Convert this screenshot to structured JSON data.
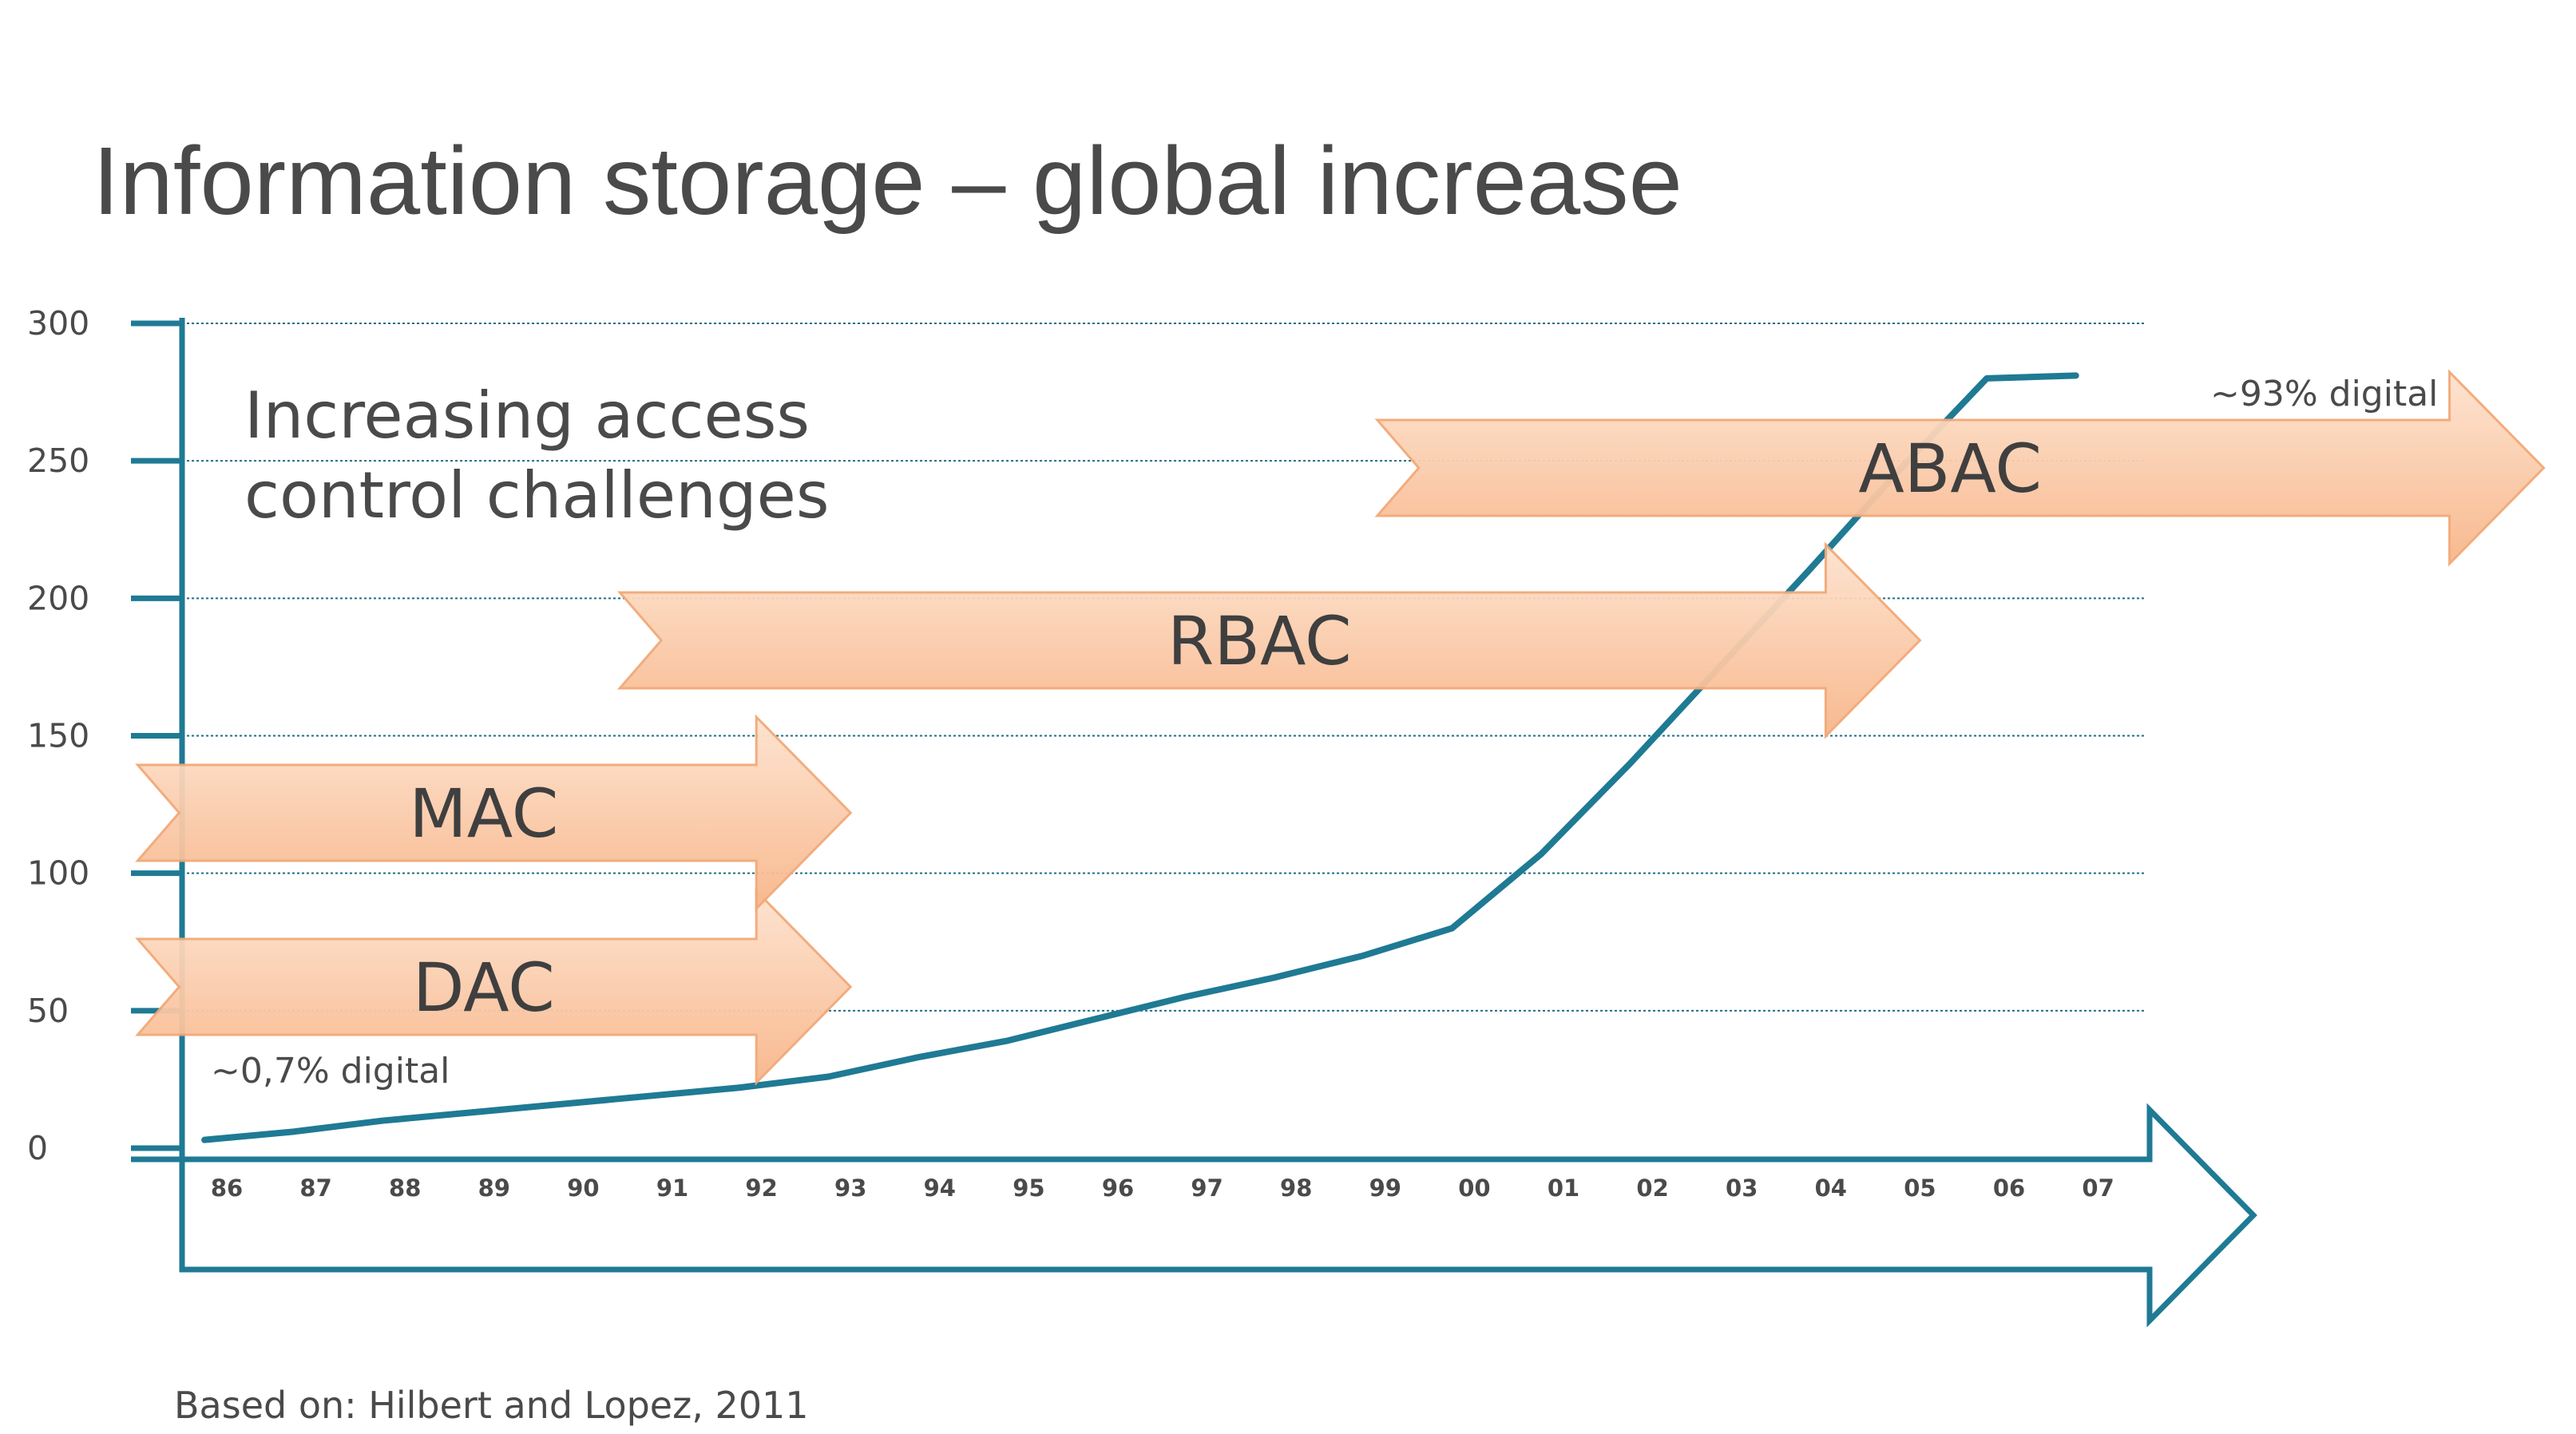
{
  "slide": {
    "title": "Information storage – global increase",
    "heading_line1": "Increasing access",
    "heading_line2": "control challenges",
    "source": "Based on: Hilbert and Lopez, 2011",
    "start_note": "~0,7% digital",
    "end_note": "~93% digital"
  },
  "colors": {
    "axis": "#1f7a94",
    "line": "#1f7a94",
    "arrow_fill_top": "#fde1cc",
    "arrow_fill_bottom": "#f8b78a",
    "arrow_stroke": "#f2a877",
    "grid": "#1f6d86"
  },
  "chart_data": {
    "type": "line",
    "x_tick_labels": [
      "86",
      "87",
      "88",
      "89",
      "90",
      "91",
      "92",
      "93",
      "94",
      "95",
      "96",
      "97",
      "98",
      "99",
      "00",
      "01",
      "02",
      "03",
      "04",
      "05",
      "06",
      "07"
    ],
    "y_ticks": [
      0,
      50,
      100,
      150,
      200,
      250,
      300
    ],
    "ylim": [
      0,
      300
    ],
    "grid": true,
    "series": [
      {
        "values": [
          3,
          6,
          10,
          13,
          16,
          19,
          22,
          26,
          33,
          39,
          47,
          55,
          62,
          70,
          80,
          107,
          140,
          175,
          210,
          246,
          280,
          281
        ]
      }
    ],
    "arrows": [
      {
        "label": "DAC",
        "start_index": -1,
        "end_index": 7
      },
      {
        "label": "MAC",
        "start_index": -1,
        "end_index": 7
      },
      {
        "label": "RBAC",
        "start_index": 4.5,
        "end_index": 19
      },
      {
        "label": "ABAC",
        "start_index": 13,
        "end_index": 26
      }
    ]
  }
}
